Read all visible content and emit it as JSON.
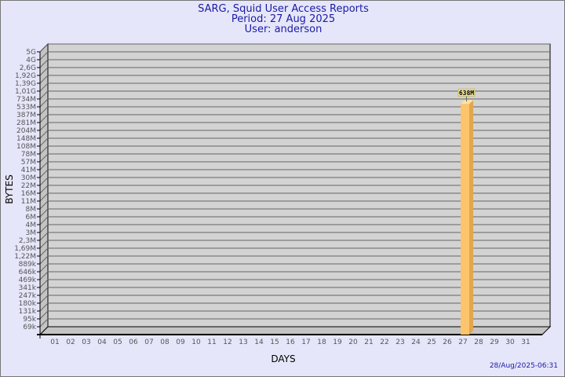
{
  "header": {
    "title": "SARG, Squid User Access Reports",
    "period": "Period: 27 Aug 2025",
    "user": "User: anderson"
  },
  "footer": {
    "timestamp": "28/Aug/2025-06:31"
  },
  "colors": {
    "background": "#e6e6fa",
    "plot": "#d3d3d3",
    "bar": "#fdc46b",
    "bar_side": "#e0a650",
    "title": "#1a1aa6"
  },
  "chart_data": {
    "type": "bar",
    "title": "SARG, Squid User Access Reports",
    "xlabel": "DAYS",
    "ylabel": "BYTES",
    "y_scale": "log",
    "grid": true,
    "y_ticks": [
      "5G",
      "4G",
      "2,6G",
      "1,92G",
      "1,39G",
      "1,01G",
      "734M",
      "533M",
      "387M",
      "281M",
      "204M",
      "148M",
      "108M",
      "78M",
      "57M",
      "41M",
      "30M",
      "22M",
      "16M",
      "11M",
      "8M",
      "6M",
      "4M",
      "3M",
      "2,3M",
      "1,69M",
      "1,22M",
      "889k",
      "646k",
      "469k",
      "341k",
      "247k",
      "180k",
      "131k",
      "95k",
      "69k"
    ],
    "categories": [
      "01",
      "02",
      "03",
      "04",
      "05",
      "06",
      "07",
      "08",
      "09",
      "10",
      "11",
      "12",
      "13",
      "14",
      "15",
      "16",
      "17",
      "18",
      "19",
      "20",
      "21",
      "22",
      "23",
      "24",
      "25",
      "26",
      "27",
      "28",
      "29",
      "30",
      "31"
    ],
    "bars": [
      {
        "day": "27",
        "value_bytes": 638000000,
        "label": "638M"
      }
    ]
  }
}
